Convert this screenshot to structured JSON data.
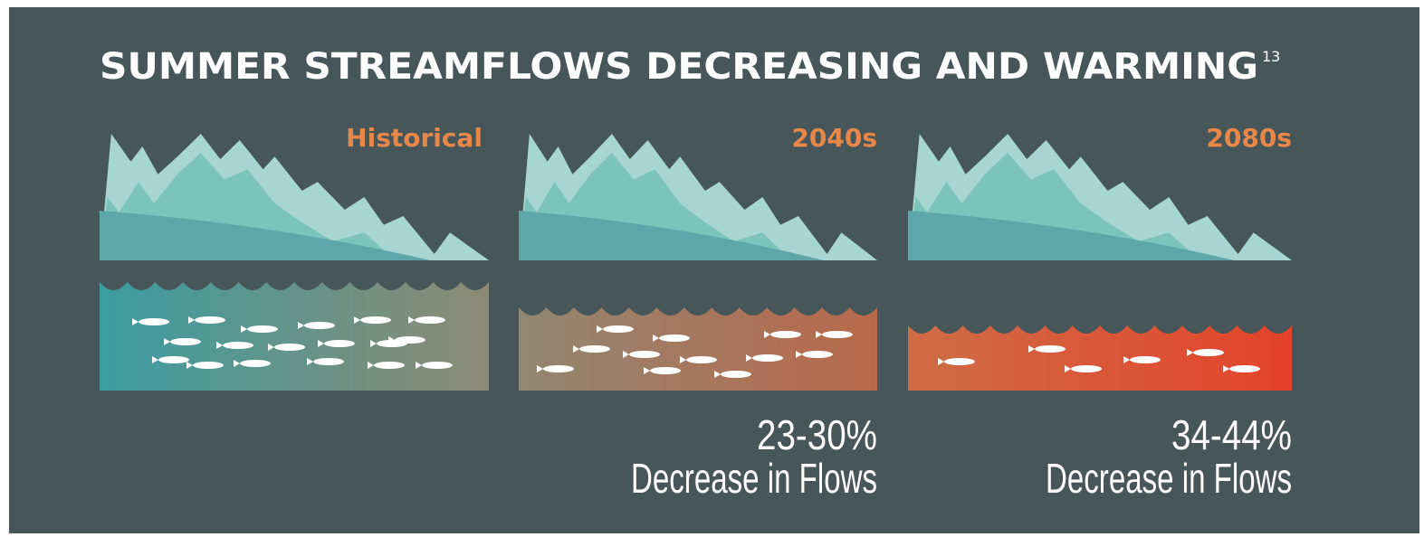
{
  "title": "SUMMER STREAMFLOWS DECREASING AND WARMING",
  "footnote": "13",
  "panels": [
    {
      "label": "Historical"
    },
    {
      "label": "2040s",
      "change": "23-30%",
      "caption": "Decrease in Flows"
    },
    {
      "label": "2080s",
      "change": "34-44%",
      "caption": "Decrease in Flows"
    }
  ]
}
